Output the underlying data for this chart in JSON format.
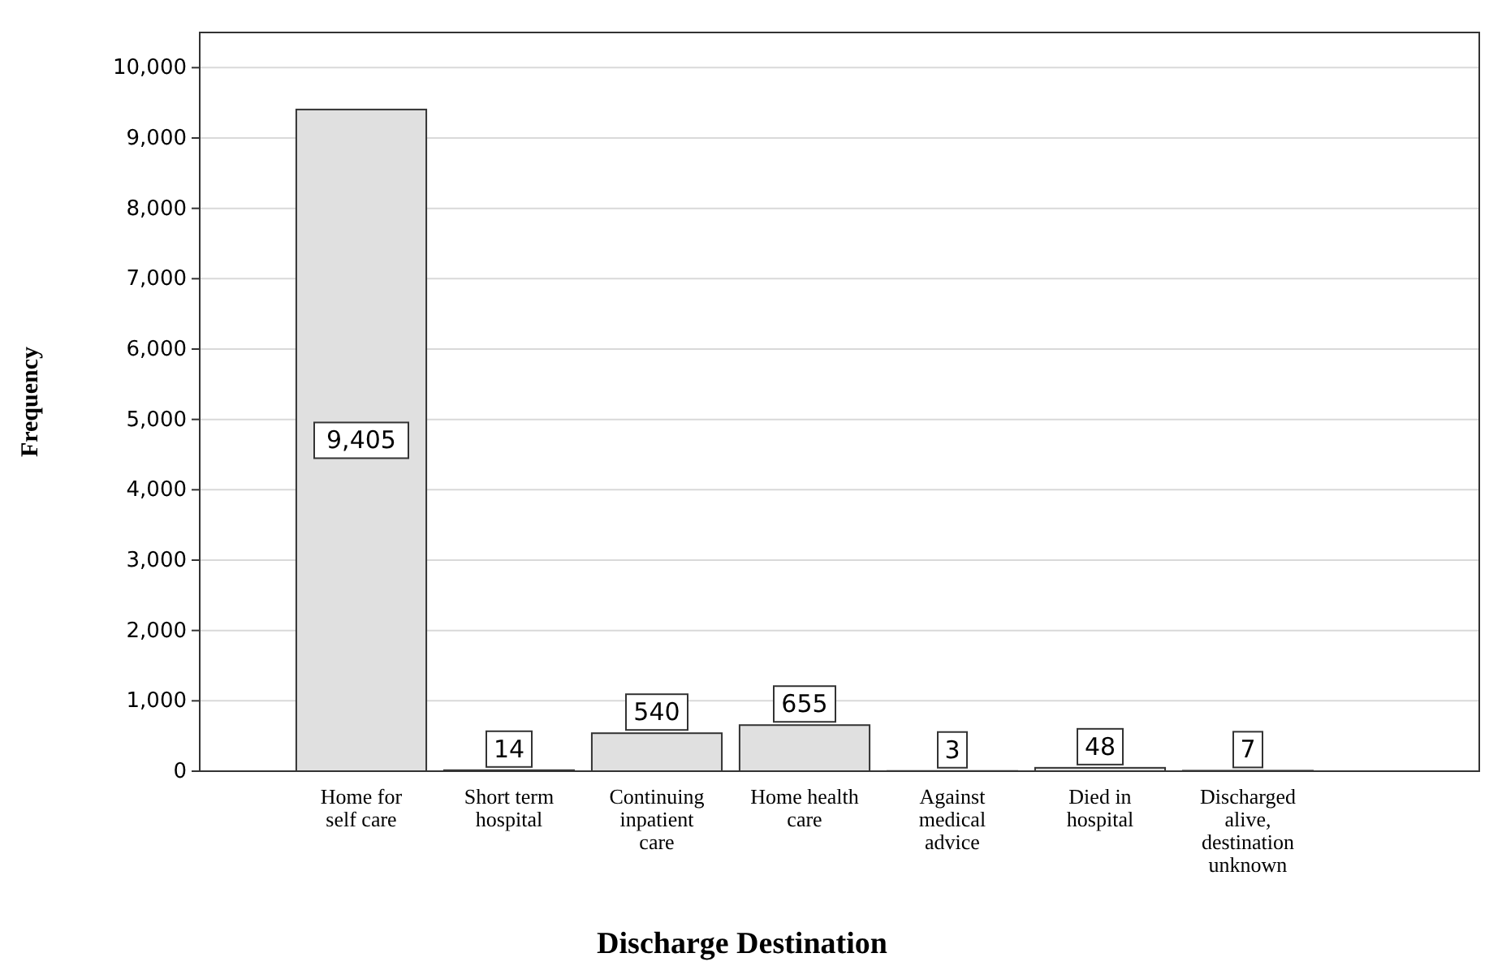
{
  "chart_data": {
    "type": "bar",
    "xlabel": "Discharge Destination",
    "ylabel": "Frequency",
    "categories": [
      "Home for self care",
      "Short term hospital",
      "Continuing inpatient care",
      "Home health care",
      "Against medical advice",
      "Died in hospital",
      "Discharged alive, destination unknown"
    ],
    "values": [
      9405,
      14,
      540,
      655,
      3,
      48,
      7
    ],
    "value_labels": [
      "9,405",
      "14",
      "540",
      "655",
      "3",
      "48",
      "7"
    ],
    "color": "#e0e0e0",
    "data_labels": true,
    "ylim": [
      0,
      10500
    ],
    "yticks": [
      {
        "value": 0,
        "label": "0"
      },
      {
        "value": 1000,
        "label": "1,000"
      },
      {
        "value": 2000,
        "label": "2,000"
      },
      {
        "value": 3000,
        "label": "3,000"
      },
      {
        "value": 4000,
        "label": "4,000"
      },
      {
        "value": 5000,
        "label": "5,000"
      },
      {
        "value": 6000,
        "label": "6,000"
      },
      {
        "value": 7000,
        "label": "7,000"
      },
      {
        "value": 8000,
        "label": "8,000"
      },
      {
        "value": 9000,
        "label": "9,000"
      },
      {
        "value": 10000,
        "label": "10,000"
      }
    ],
    "grid": "y"
  }
}
